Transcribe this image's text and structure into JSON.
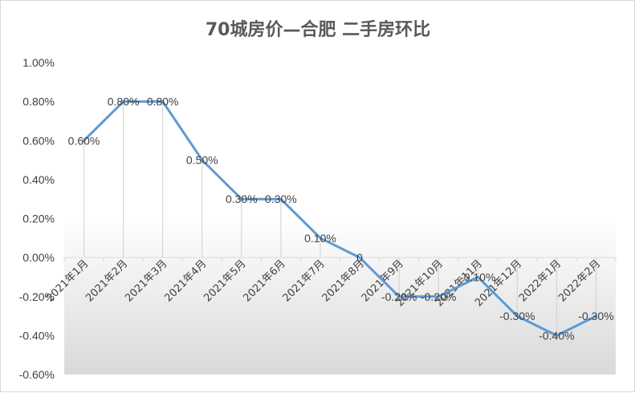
{
  "chart_data": {
    "type": "line",
    "title": "70城房价—合肥 二手房环比",
    "categories": [
      "2021年1月",
      "2021年2月",
      "2021年3月",
      "2021年4月",
      "2021年5月",
      "2021年6月",
      "2021年7月",
      "2021年8月",
      "2021年9月",
      "2021年10月",
      "2021年11月",
      "2021年12月",
      "2022年1月",
      "2022年2月"
    ],
    "values": [
      0.6,
      0.8,
      0.8,
      0.5,
      0.3,
      0.3,
      0.1,
      0.0,
      -0.2,
      -0.2,
      -0.1,
      -0.3,
      -0.4,
      -0.3
    ],
    "data_labels": [
      "0.60%",
      "0.80%",
      "0.80%",
      "0.50%",
      "0.30%",
      "0.30%",
      "0.10%",
      "0",
      "-0.20%",
      "-0.20%",
      "-0.10%",
      "-0.30%",
      "-0.40%",
      "-0.30%"
    ],
    "y_ticks": [
      "1.00%",
      "0.80%",
      "0.60%",
      "0.40%",
      "0.20%",
      "0.00%",
      "-0.20%",
      "-0.40%",
      "-0.60%"
    ],
    "y_tick_values": [
      1.0,
      0.8,
      0.6,
      0.4,
      0.2,
      0.0,
      -0.2,
      -0.4,
      -0.6
    ],
    "ylim": [
      -0.6,
      1.0
    ],
    "xlabel": "",
    "ylabel": "",
    "grid": false,
    "drop_lines": true,
    "legend": "none",
    "line_color": "#5b9bd5",
    "plot_gradient_color": "#d9d9d9"
  }
}
